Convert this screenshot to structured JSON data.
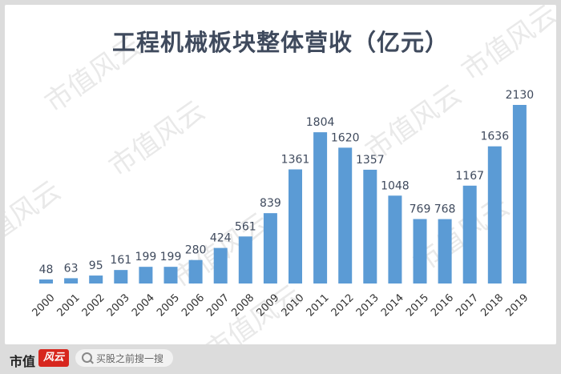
{
  "watermark": "市值风云",
  "footer": {
    "logo_text": "市值",
    "logo_badge": "风云",
    "search_placeholder": "买股之前搜一搜"
  },
  "colors": {
    "bar": "#5b9bd5",
    "title": "#3f4a5d",
    "label": "#3f4a5d"
  },
  "chart_data": {
    "type": "bar",
    "title": "工程机械板块整体营收（亿元）",
    "categories": [
      "2000",
      "2001",
      "2002",
      "2003",
      "2004",
      "2005",
      "2006",
      "2007",
      "2008",
      "2009",
      "2010",
      "2011",
      "2012",
      "2013",
      "2014",
      "2015",
      "2016",
      "2017",
      "2018",
      "2019"
    ],
    "values": [
      48,
      63,
      95,
      161,
      199,
      199,
      280,
      424,
      561,
      839,
      1361,
      1804,
      1620,
      1357,
      1048,
      769,
      768,
      1167,
      1636,
      2130
    ],
    "xlabel": "",
    "ylabel": "",
    "ylim": [
      0,
      2130
    ],
    "grid": false,
    "legend": "none"
  }
}
